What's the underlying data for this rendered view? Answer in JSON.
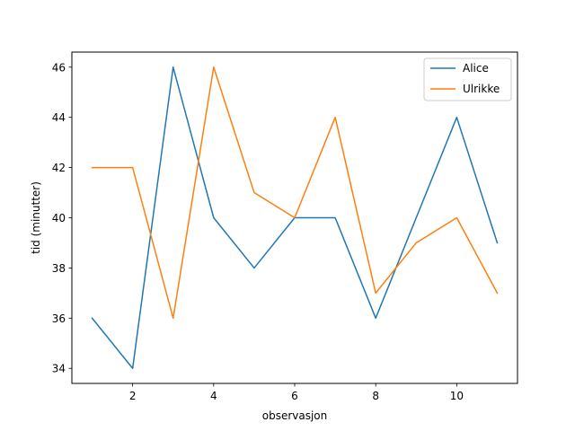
{
  "chart_data": {
    "type": "line",
    "title": "",
    "xlabel": "observasjon",
    "ylabel": "tid (minutter)",
    "x": [
      1,
      2,
      3,
      4,
      5,
      6,
      7,
      8,
      9,
      10,
      11
    ],
    "series": [
      {
        "name": "Alice",
        "color": "#1f77b4",
        "values": [
          36,
          34,
          46,
          40,
          38,
          40,
          40,
          36,
          40,
          44,
          39
        ]
      },
      {
        "name": "Ulrikke",
        "color": "#ff7f0e",
        "values": [
          42,
          42,
          36,
          46,
          41,
          40,
          44,
          37,
          39,
          40,
          37
        ]
      }
    ],
    "xlim": [
      0.5,
      11.5
    ],
    "ylim": [
      33.4,
      46.6
    ],
    "xticks": [
      2,
      4,
      6,
      8,
      10
    ],
    "yticks": [
      34,
      36,
      38,
      40,
      42,
      44,
      46
    ],
    "grid": false,
    "legend_position": "top-right"
  }
}
